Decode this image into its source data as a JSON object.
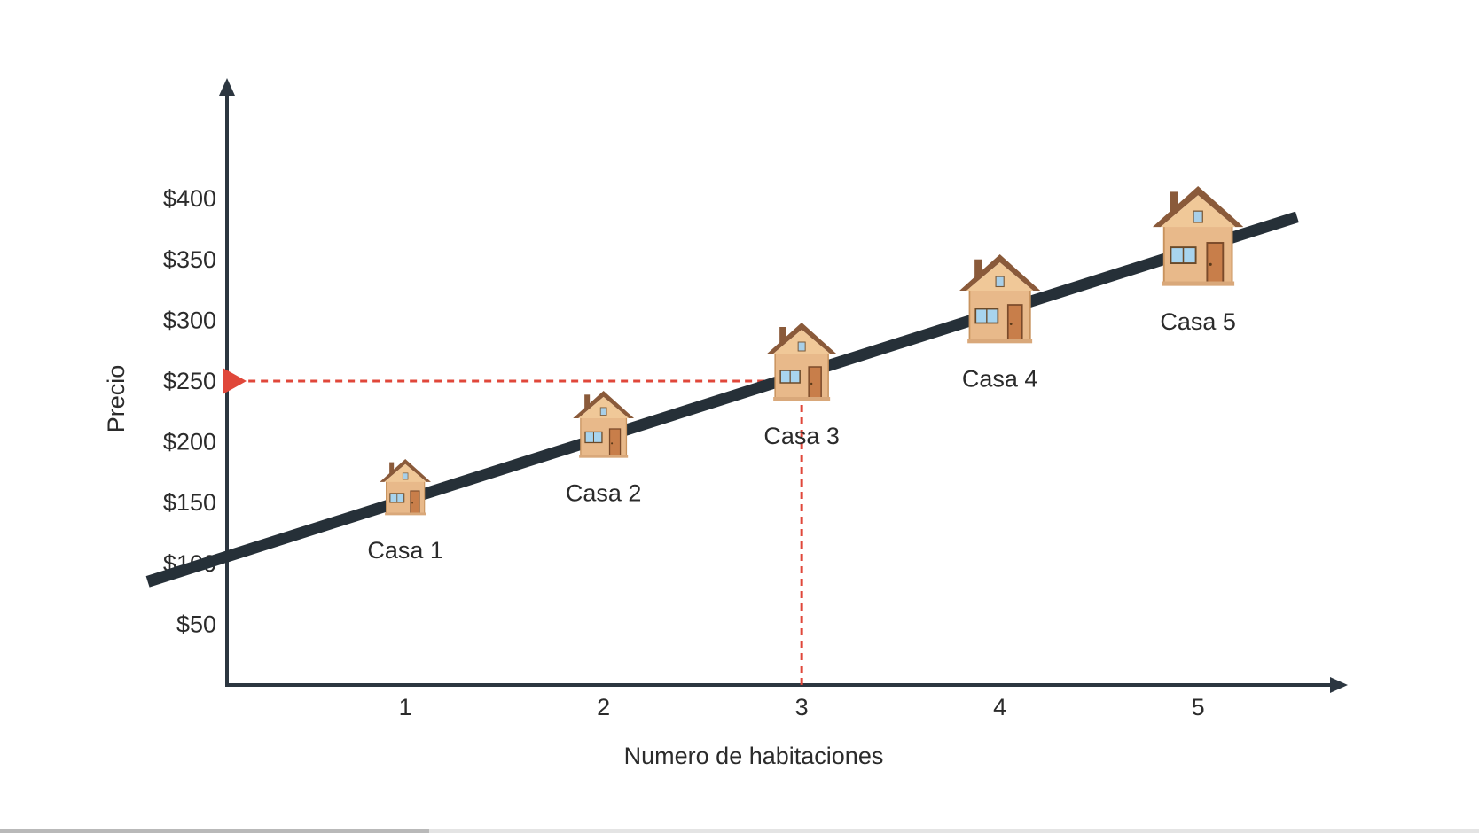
{
  "chart_data": {
    "type": "line",
    "title": "",
    "xlabel": "Numero de habitaciones",
    "ylabel": "Precio",
    "x_ticks": [
      1,
      2,
      3,
      4,
      5
    ],
    "y_ticks": [
      "$50",
      "$100",
      "$150",
      "$200",
      "$250",
      "$300",
      "$350",
      "$400"
    ],
    "y_tick_values": [
      50,
      100,
      150,
      200,
      250,
      300,
      350,
      400
    ],
    "xlim": [
      0.1,
      5.7
    ],
    "ylim": [
      0,
      445
    ],
    "grid": false,
    "trend_line": {
      "from": [
        -0.3,
        85
      ],
      "to": [
        5.5,
        385
      ]
    },
    "points": [
      {
        "label": "Casa 1",
        "x": 1,
        "y": 150
      },
      {
        "label": "Casa 2",
        "x": 2,
        "y": 200
      },
      {
        "label": "Casa 3",
        "x": 3,
        "y": 250
      },
      {
        "label": "Casa 4",
        "x": 4,
        "y": 300
      },
      {
        "label": "Casa 5",
        "x": 5,
        "y": 350
      }
    ],
    "prediction": {
      "x": 3,
      "y": 250,
      "color": "#e0473a"
    },
    "colors": {
      "axis": "#2c3640",
      "line": "#263038",
      "house_wall": "#e8b98a",
      "house_roof": "#8a5a3a"
    }
  },
  "progress_bar": {
    "fraction": 0.29
  }
}
